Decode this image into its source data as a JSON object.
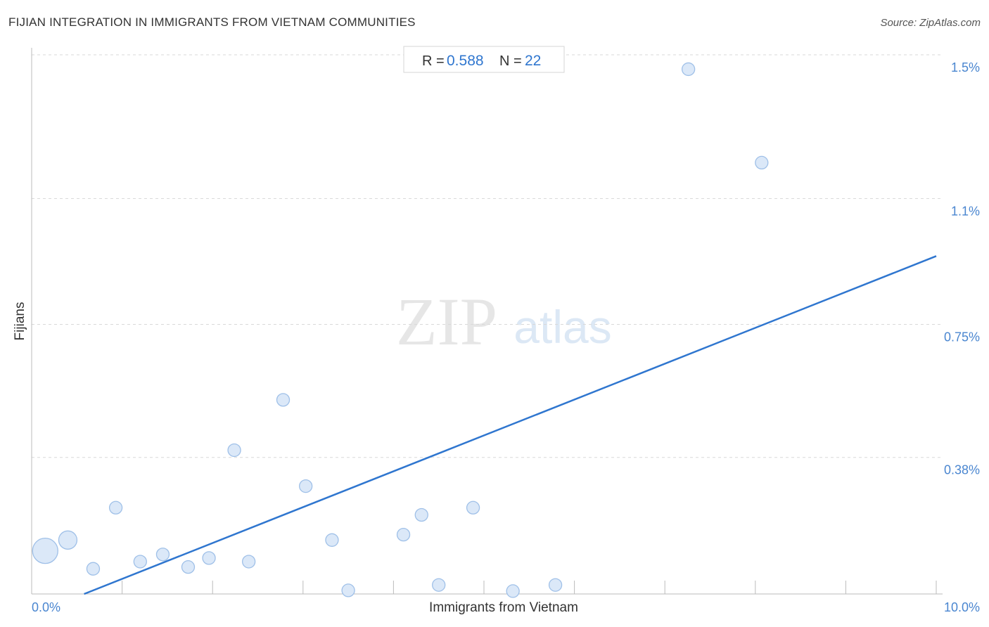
{
  "title": "FIJIAN INTEGRATION IN IMMIGRANTS FROM VIETNAM COMMUNITIES",
  "source": "Source: ZipAtlas.com",
  "watermark": {
    "zip": "ZIP",
    "atlas": "atlas"
  },
  "stats": {
    "r_label": "R =",
    "r_value": "0.588",
    "n_label": "N =",
    "n_value": "22"
  },
  "colors": {
    "point_fill": "#dbe8f8",
    "point_stroke": "#9fc0e8",
    "trend": "#2f76cf",
    "tick_text": "#4a86d0",
    "grid": "#d9d9d9"
  },
  "chart_data": {
    "type": "scatter",
    "title": "FIJIAN INTEGRATION IN IMMIGRANTS FROM VIETNAM COMMUNITIES",
    "xlabel": "Immigrants from Vietnam",
    "ylabel": "Fijians",
    "xlim": [
      0,
      10
    ],
    "ylim": [
      0,
      1.5
    ],
    "x_tick_labels": [
      "0.0%",
      "10.0%"
    ],
    "y_ticks": [
      0.38,
      0.75,
      1.1,
      1.5
    ],
    "y_tick_labels": [
      "0.38%",
      "0.75%",
      "1.1%",
      "1.5%"
    ],
    "grid": true,
    "trendline": {
      "x": [
        0.58,
        10.0
      ],
      "y": [
        0.0,
        0.94
      ]
    },
    "points": [
      {
        "x": 0.15,
        "y": 0.12,
        "size": 3
      },
      {
        "x": 0.4,
        "y": 0.15,
        "size": 2
      },
      {
        "x": 0.68,
        "y": 0.07,
        "size": 1
      },
      {
        "x": 0.93,
        "y": 0.24,
        "size": 1
      },
      {
        "x": 1.2,
        "y": 0.09,
        "size": 1
      },
      {
        "x": 1.45,
        "y": 0.11,
        "size": 1
      },
      {
        "x": 1.73,
        "y": 0.075,
        "size": 1
      },
      {
        "x": 1.96,
        "y": 0.1,
        "size": 1
      },
      {
        "x": 2.24,
        "y": 0.4,
        "size": 1
      },
      {
        "x": 2.4,
        "y": 0.09,
        "size": 1
      },
      {
        "x": 2.78,
        "y": 0.54,
        "size": 1
      },
      {
        "x": 3.03,
        "y": 0.3,
        "size": 1
      },
      {
        "x": 3.32,
        "y": 0.15,
        "size": 1
      },
      {
        "x": 3.5,
        "y": 0.01,
        "size": 1
      },
      {
        "x": 4.11,
        "y": 0.165,
        "size": 1
      },
      {
        "x": 4.31,
        "y": 0.22,
        "size": 1
      },
      {
        "x": 4.5,
        "y": 0.025,
        "size": 1
      },
      {
        "x": 4.88,
        "y": 0.24,
        "size": 1
      },
      {
        "x": 5.32,
        "y": 0.008,
        "size": 1
      },
      {
        "x": 5.79,
        "y": 0.025,
        "size": 1
      },
      {
        "x": 7.26,
        "y": 1.46,
        "size": 1
      },
      {
        "x": 8.07,
        "y": 1.2,
        "size": 1
      }
    ]
  }
}
